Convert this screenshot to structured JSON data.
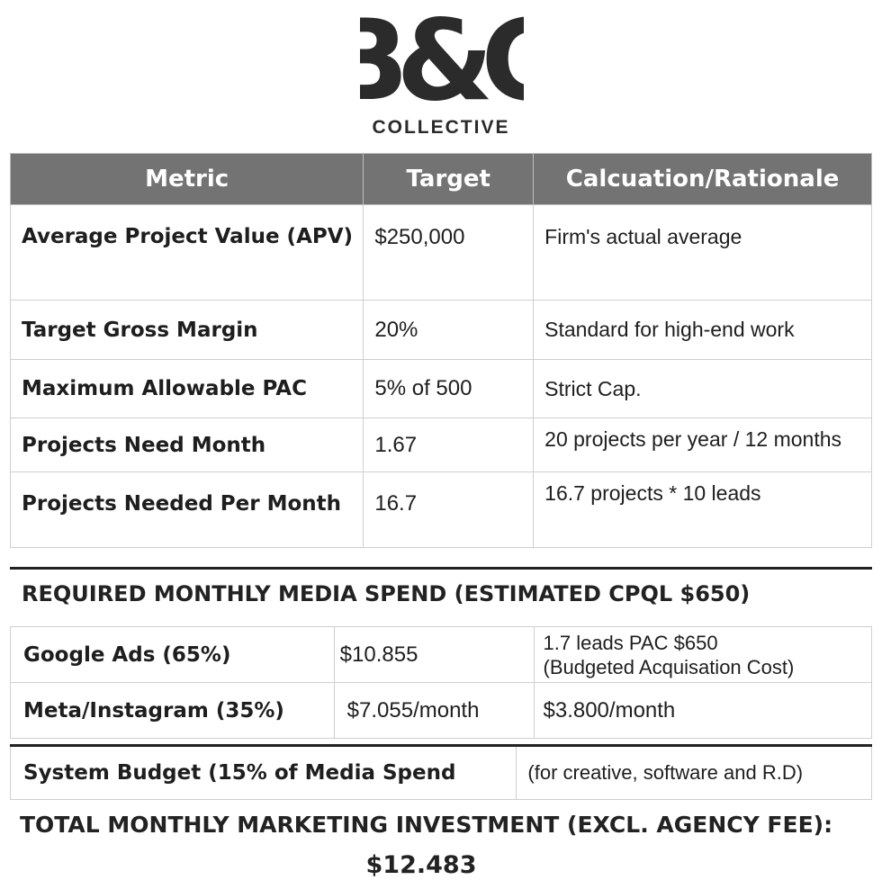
{
  "brand": {
    "logo_text": "B&G",
    "subtitle": "COLLECTIVE"
  },
  "metrics_table": {
    "headers": [
      "Metric",
      "Target",
      "Calcuation/Rationale"
    ],
    "rows": [
      {
        "metric": "Average Project Value (APV)",
        "target": "$250,000",
        "rationale": "Firm's actual average"
      },
      {
        "metric": "Target Gross Margin",
        "target": "20%",
        "rationale": "Standard for high-end work"
      },
      {
        "metric": "Maximum Allowable PAC",
        "target": "5% of 500",
        "rationale": "Strict Cap."
      },
      {
        "metric": "Projects Need Month",
        "target": "1.67",
        "rationale": "20 projects per year / 12 months"
      },
      {
        "metric": "Projects Needed Per Month",
        "target": "16.7",
        "rationale": "16.7 projects * 10 leads"
      }
    ]
  },
  "media": {
    "heading": "REQUIRED MONTHLY MEDIA SPEND (ESTIMATED CPQL $650)",
    "rows": [
      {
        "channel": "Google Ads (65%)",
        "spend": "$10.855",
        "note_line1": "1.7 leads PAC $650",
        "note_line2": "(Budgeted Acquisation Cost)"
      },
      {
        "channel": "Meta/Instagram (35%)",
        "spend": "$7.055/month",
        "note": "$3.800/month"
      }
    ]
  },
  "system_budget": {
    "label": "System Budget (15% of Media Spend",
    "note": "(for creative, software and R.D)"
  },
  "total": {
    "label": "TOTAL MONTHLY MARKETING INVESTMENT (EXCL. AGENCY FEE):",
    "value": "$12.483"
  }
}
